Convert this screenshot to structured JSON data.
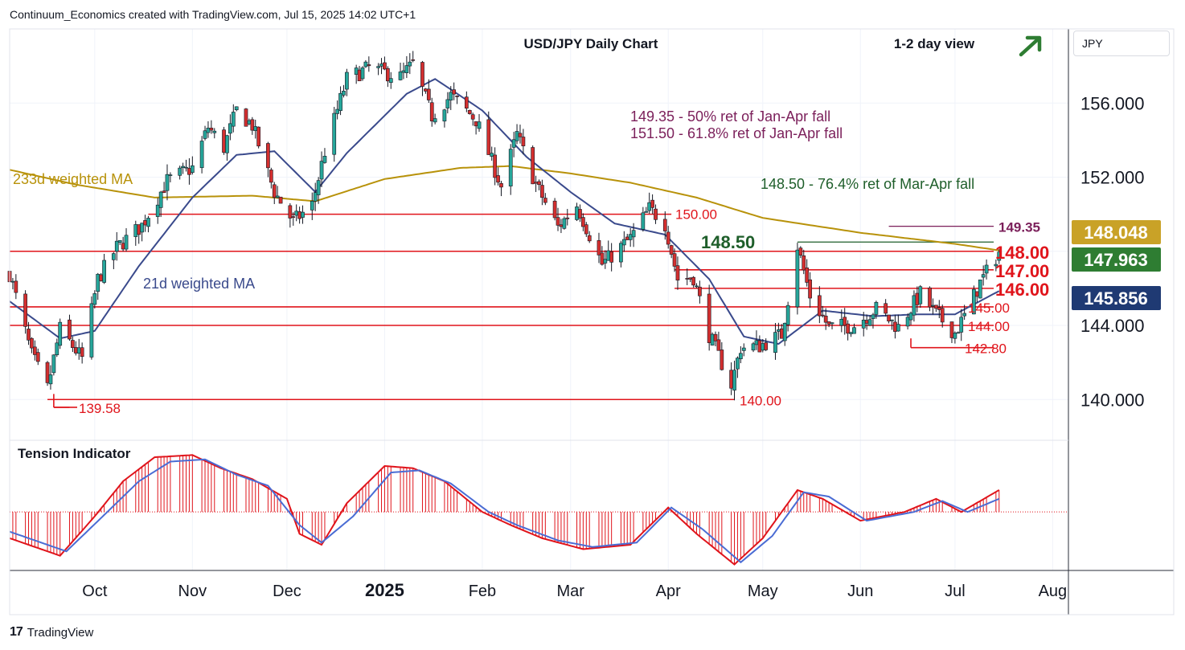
{
  "header": {
    "attribution": "Continuum_Economics created with TradingView.com, Jul 15, 2025 14:02 UTC+1"
  },
  "footer": {
    "brand": "TradingView",
    "logo_mark": "17"
  },
  "currency": "JPY",
  "colors": {
    "up": "#26a69a",
    "down": "#d32f2f",
    "wick": "#131722",
    "ma21": "#3a4a8c",
    "ma233": "#b8920a",
    "level": "#e0141b",
    "fib_purple": "#7b1f5a",
    "fib_green": "#1e5e2a",
    "badge_gold": "#c9a227",
    "badge_green": "#2e7d32",
    "badge_navy": "#1f3a73"
  },
  "chart_data": [
    {
      "type": "candlestick",
      "title": "USD/JPY Daily Chart",
      "subtitle": "1-2 day view",
      "outlook_arrow": "up-right",
      "x_ticks": [
        {
          "label": "Oct",
          "date": "2024-10-01",
          "bold": false
        },
        {
          "label": "Nov",
          "date": "2024-11-01",
          "bold": false
        },
        {
          "label": "Dec",
          "date": "2024-12-01",
          "bold": false
        },
        {
          "label": "2025",
          "date": "2025-01-01",
          "bold": true
        },
        {
          "label": "Feb",
          "date": "2025-02-01",
          "bold": false
        },
        {
          "label": "Mar",
          "date": "2025-03-01",
          "bold": false
        },
        {
          "label": "Apr",
          "date": "2025-04-01",
          "bold": false
        },
        {
          "label": "May",
          "date": "2025-05-01",
          "bold": false
        },
        {
          "label": "Jun",
          "date": "2025-06-01",
          "bold": false
        },
        {
          "label": "Jul",
          "date": "2025-07-01",
          "bold": false
        },
        {
          "label": "Aug",
          "date": "2025-08-01",
          "bold": false
        }
      ],
      "xlim": [
        "2024-09-04",
        "2025-08-06"
      ],
      "ylim": [
        137.8,
        160.0
      ],
      "y_ticks": [
        {
          "value": 140,
          "label": "140.000"
        },
        {
          "value": 144,
          "label": "144.000"
        },
        {
          "value": 152,
          "label": "152.000"
        },
        {
          "value": 156,
          "label": "156.000"
        }
      ],
      "close_keypoints": [
        [
          "2024-09-04",
          146.8
        ],
        [
          "2024-09-11",
          142.4
        ],
        [
          "2024-09-16",
          140.6
        ],
        [
          "2024-09-20",
          143.8
        ],
        [
          "2024-09-27",
          142.2
        ],
        [
          "2024-10-02",
          146.5
        ],
        [
          "2024-10-08",
          148.2
        ],
        [
          "2024-10-16",
          149.4
        ],
        [
          "2024-10-24",
          151.8
        ],
        [
          "2024-11-01",
          152.5
        ],
        [
          "2024-11-06",
          154.7
        ],
        [
          "2024-11-11",
          153.6
        ],
        [
          "2024-11-15",
          155.6
        ],
        [
          "2024-11-20",
          154.8
        ],
        [
          "2024-11-27",
          151.2
        ],
        [
          "2024-12-03",
          149.6
        ],
        [
          "2024-12-09",
          150.5
        ],
        [
          "2024-12-13",
          153.4
        ],
        [
          "2024-12-20",
          157.3
        ],
        [
          "2024-12-27",
          157.9
        ],
        [
          "2025-01-06",
          157.4
        ],
        [
          "2025-01-10",
          158.1
        ],
        [
          "2025-01-16",
          155.3
        ],
        [
          "2025-01-22",
          156.4
        ],
        [
          "2025-01-30",
          155.1
        ],
        [
          "2025-02-07",
          151.5
        ],
        [
          "2025-02-12",
          154.3
        ],
        [
          "2025-02-18",
          151.6
        ],
        [
          "2025-02-25",
          149.3
        ],
        [
          "2025-03-03",
          150.5
        ],
        [
          "2025-03-11",
          147.3
        ],
        [
          "2025-03-20",
          148.7
        ],
        [
          "2025-03-26",
          150.3
        ],
        [
          "2025-03-31",
          149.5
        ],
        [
          "2025-04-04",
          146.5
        ],
        [
          "2025-04-09",
          146.6
        ],
        [
          "2025-04-14",
          143.5
        ],
        [
          "2025-04-21",
          140.8
        ],
        [
          "2025-04-24",
          142.8
        ],
        [
          "2025-04-30",
          142.9
        ],
        [
          "2025-05-07",
          143.5
        ],
        [
          "2025-05-12",
          148.3
        ],
        [
          "2025-05-16",
          145.6
        ],
        [
          "2025-05-22",
          143.9
        ],
        [
          "2025-05-30",
          144.0
        ],
        [
          "2025-06-06",
          144.9
        ],
        [
          "2025-06-13",
          143.9
        ],
        [
          "2025-06-20",
          145.7
        ],
        [
          "2025-06-25",
          144.6
        ],
        [
          "2025-07-01",
          143.6
        ],
        [
          "2025-07-04",
          144.5
        ],
        [
          "2025-07-09",
          146.3
        ],
        [
          "2025-07-15",
          147.96
        ]
      ],
      "ma21_keypoints": [
        [
          "2024-09-04",
          145.3
        ],
        [
          "2024-09-20",
          143.3
        ],
        [
          "2024-10-01",
          143.7
        ],
        [
          "2024-10-15",
          147.2
        ],
        [
          "2024-11-01",
          150.9
        ],
        [
          "2024-11-15",
          153.2
        ],
        [
          "2024-11-27",
          153.4
        ],
        [
          "2024-12-10",
          151.2
        ],
        [
          "2024-12-20",
          153.3
        ],
        [
          "2025-01-08",
          156.5
        ],
        [
          "2025-01-17",
          157.3
        ],
        [
          "2025-02-01",
          155.6
        ],
        [
          "2025-02-15",
          153.1
        ],
        [
          "2025-03-01",
          151.2
        ],
        [
          "2025-03-15",
          149.5
        ],
        [
          "2025-03-31",
          148.9
        ],
        [
          "2025-04-14",
          146.5
        ],
        [
          "2025-04-25",
          143.4
        ],
        [
          "2025-05-06",
          143.0
        ],
        [
          "2025-05-20",
          144.8
        ],
        [
          "2025-06-05",
          144.5
        ],
        [
          "2025-06-20",
          144.6
        ],
        [
          "2025-07-01",
          144.6
        ],
        [
          "2025-07-15",
          145.856
        ]
      ],
      "ma233_keypoints": [
        [
          "2024-09-04",
          152.4
        ],
        [
          "2024-09-25",
          151.6
        ],
        [
          "2024-10-20",
          150.9
        ],
        [
          "2024-11-20",
          151.0
        ],
        [
          "2024-12-10",
          150.7
        ],
        [
          "2025-01-01",
          151.9
        ],
        [
          "2025-01-25",
          152.5
        ],
        [
          "2025-02-10",
          152.6
        ],
        [
          "2025-03-01",
          152.2
        ],
        [
          "2025-03-20",
          151.7
        ],
        [
          "2025-04-10",
          150.9
        ],
        [
          "2025-05-01",
          149.8
        ],
        [
          "2025-06-01",
          149.0
        ],
        [
          "2025-07-01",
          148.4
        ],
        [
          "2025-07-15",
          148.048
        ]
      ],
      "ma_labels": [
        {
          "text": "233d weighted MA",
          "series": "ma233"
        },
        {
          "text": "21d weighted MA",
          "series": "ma21"
        }
      ],
      "levels": [
        {
          "value": 148.0,
          "label": "148.00",
          "start": "2024-09-04",
          "bold": true
        },
        {
          "value": 147.0,
          "label": "147.00",
          "start": "2025-04-03",
          "bold": true
        },
        {
          "value": 146.0,
          "label": "146.00",
          "start": "2025-04-03",
          "bold": true
        },
        {
          "value": 145.0,
          "label": "145.00",
          "start": "2024-09-04",
          "bold": false
        },
        {
          "value": 144.0,
          "label": "144.00",
          "start": "2024-09-04",
          "bold": false
        },
        {
          "value": 142.8,
          "label": "142.80",
          "start": "2025-06-17",
          "bold": false
        },
        {
          "value": 150.0,
          "label": "150.00",
          "start": "2024-10-18",
          "end": "2025-04-02",
          "bold": false
        },
        {
          "value": 140.0,
          "label": "140.00",
          "start": "2024-09-16",
          "end": "2025-04-22",
          "bold": false
        },
        {
          "value": 139.58,
          "label": "139.58",
          "start": "2024-09-18",
          "end": "2024-09-23",
          "bold": false
        }
      ],
      "fib_levels": [
        {
          "value": 149.35,
          "label": "149.35",
          "start": "2025-06-10",
          "color": "fib_purple"
        },
        {
          "value": 148.5,
          "label": "148.50",
          "start": "2025-05-12",
          "color": "fib_green"
        }
      ],
      "annotations": [
        "149.35 - 50% ret of Jan-Apr fall",
        "151.50 - 61.8% ret of Jan-Apr fall",
        "148.50 - 76.4% ret of Mar-Apr fall"
      ],
      "price_badges": [
        {
          "value": 148.048,
          "label": "148.048",
          "color": "badge_gold"
        },
        {
          "value": 147.963,
          "label": "147.963",
          "color": "badge_green"
        },
        {
          "value": 145.856,
          "label": "145.856",
          "color": "badge_navy"
        }
      ]
    },
    {
      "type": "histogram",
      "title": "Tension Indicator",
      "zero_line": true,
      "ylim": [
        -1.3,
        1.6
      ],
      "hist_keypoints": [
        [
          "2024-09-04",
          -0.6
        ],
        [
          "2024-09-20",
          -1.0
        ],
        [
          "2024-10-01",
          -0.1
        ],
        [
          "2024-10-10",
          0.7
        ],
        [
          "2024-10-20",
          1.25
        ],
        [
          "2024-11-01",
          1.3
        ],
        [
          "2024-11-10",
          1.0
        ],
        [
          "2024-11-20",
          0.75
        ],
        [
          "2024-12-01",
          0.3
        ],
        [
          "2024-12-05",
          -0.5
        ],
        [
          "2024-12-12",
          -0.75
        ],
        [
          "2024-12-20",
          0.2
        ],
        [
          "2025-01-01",
          1.05
        ],
        [
          "2025-01-10",
          1.0
        ],
        [
          "2025-01-20",
          0.7
        ],
        [
          "2025-02-01",
          0.0
        ],
        [
          "2025-02-10",
          -0.3
        ],
        [
          "2025-02-20",
          -0.6
        ],
        [
          "2025-03-05",
          -0.85
        ],
        [
          "2025-03-20",
          -0.75
        ],
        [
          "2025-04-01",
          0.1
        ],
        [
          "2025-04-10",
          -0.5
        ],
        [
          "2025-04-22",
          -1.2
        ],
        [
          "2025-05-01",
          -0.6
        ],
        [
          "2025-05-12",
          0.5
        ],
        [
          "2025-05-20",
          0.3
        ],
        [
          "2025-06-01",
          -0.2
        ],
        [
          "2025-06-15",
          0.0
        ],
        [
          "2025-06-25",
          0.3
        ],
        [
          "2025-07-03",
          0.0
        ],
        [
          "2025-07-15",
          0.5
        ]
      ],
      "signal_keypoints": [
        [
          "2024-09-04",
          -0.45
        ],
        [
          "2024-09-22",
          -0.9
        ],
        [
          "2024-10-05",
          0.0
        ],
        [
          "2024-10-15",
          0.7
        ],
        [
          "2024-10-25",
          1.15
        ],
        [
          "2024-11-05",
          1.2
        ],
        [
          "2024-11-15",
          0.85
        ],
        [
          "2024-11-25",
          0.6
        ],
        [
          "2024-12-05",
          -0.3
        ],
        [
          "2024-12-12",
          -0.7
        ],
        [
          "2024-12-22",
          -0.1
        ],
        [
          "2025-01-03",
          0.9
        ],
        [
          "2025-01-12",
          0.95
        ],
        [
          "2025-01-22",
          0.65
        ],
        [
          "2025-02-03",
          0.0
        ],
        [
          "2025-02-12",
          -0.3
        ],
        [
          "2025-02-25",
          -0.65
        ],
        [
          "2025-03-08",
          -0.8
        ],
        [
          "2025-03-22",
          -0.7
        ],
        [
          "2025-04-02",
          0.1
        ],
        [
          "2025-04-12",
          -0.4
        ],
        [
          "2025-04-24",
          -1.15
        ],
        [
          "2025-05-04",
          -0.55
        ],
        [
          "2025-05-14",
          0.45
        ],
        [
          "2025-05-22",
          0.35
        ],
        [
          "2025-06-03",
          -0.2
        ],
        [
          "2025-06-18",
          0.0
        ],
        [
          "2025-06-27",
          0.25
        ],
        [
          "2025-07-05",
          0.0
        ],
        [
          "2025-07-15",
          0.3
        ]
      ]
    }
  ]
}
